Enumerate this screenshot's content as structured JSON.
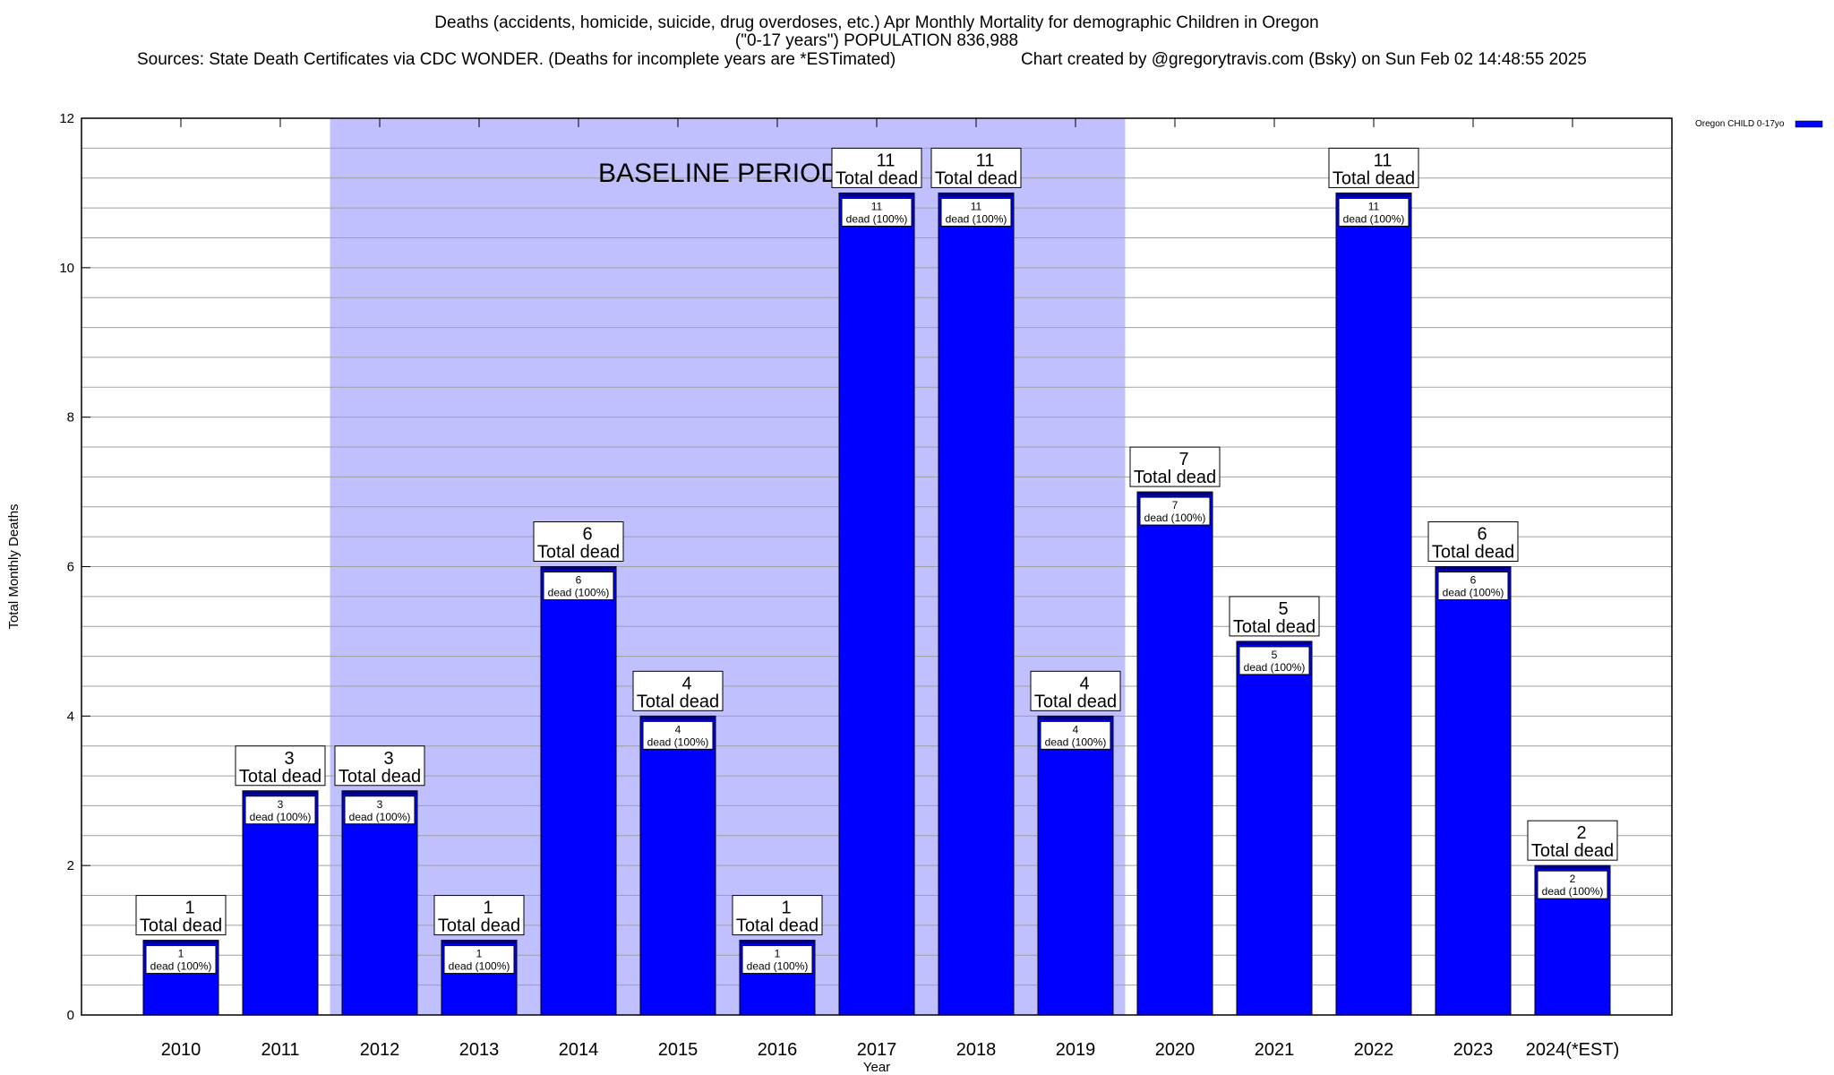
{
  "chart_data": {
    "type": "bar",
    "title": "Deaths (accidents, homicide, suicide, drug overdoses, etc.) Apr Monthly Mortality for demographic Children in Oregon",
    "subtitle": "(\"0-17 years\") POPULATION 836,988",
    "sources": "Sources: State Death Certificates via CDC WONDER. (Deaths for incomplete years are *ESTimated)",
    "credit": "Chart created by @gregorytravis.com (Bsky) on Sun Feb 02 14:48:55 2025",
    "xlabel": "Year",
    "ylabel": "Total Monthly Deaths",
    "ylim": [
      0,
      12
    ],
    "yticks": [
      0,
      2,
      4,
      6,
      8,
      10,
      12
    ],
    "grid": true,
    "legend_position": "top-right",
    "categories": [
      "2010",
      "2011",
      "2012",
      "2013",
      "2014",
      "2015",
      "2016",
      "2017",
      "2018",
      "2019",
      "2020",
      "2021",
      "2022",
      "2023",
      "2024(*EST)"
    ],
    "series": [
      {
        "name": "Oregon CHILD 0-17yo",
        "color": "#0000ff",
        "values": [
          1,
          3,
          3,
          1,
          6,
          4,
          1,
          11,
          11,
          4,
          7,
          5,
          11,
          6,
          2
        ]
      }
    ],
    "bar_top_label": "Total dead",
    "bar_inner_label": "dead (100%)",
    "shaded_region": {
      "label": "BASELINE PERIOD",
      "from": "2012",
      "to": "2019",
      "color": "#c0c0ff"
    }
  }
}
